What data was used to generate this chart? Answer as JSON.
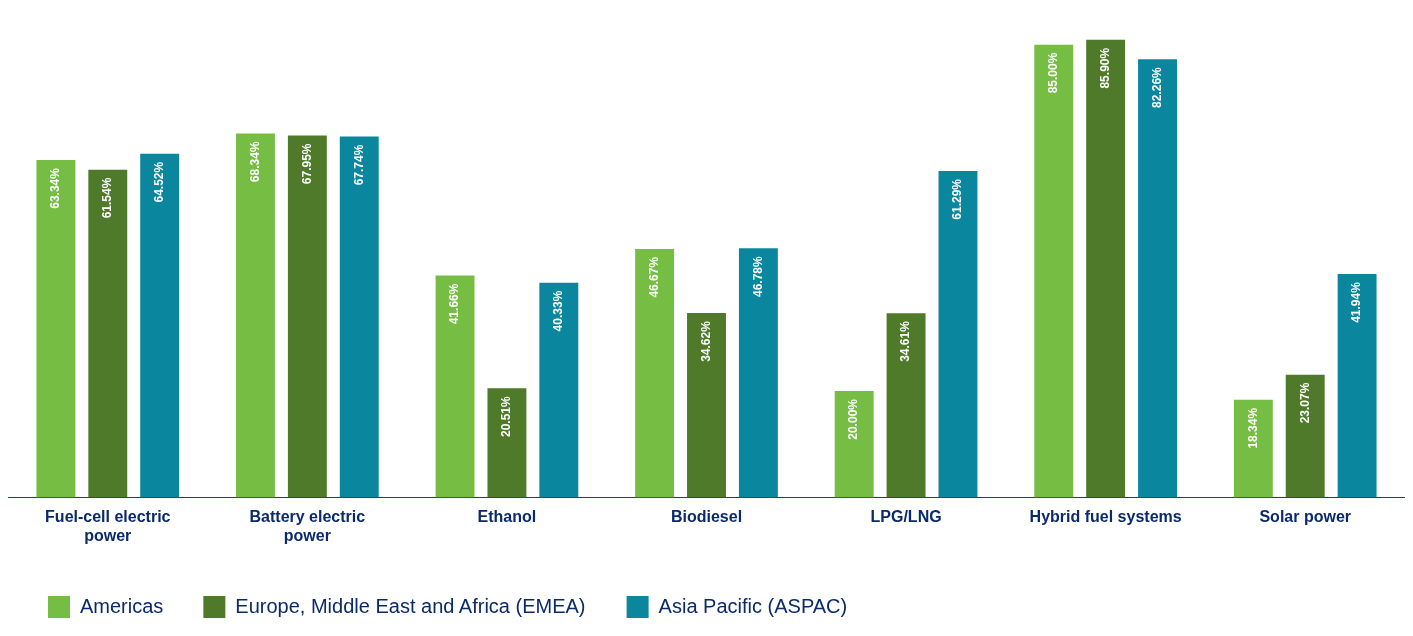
{
  "chart_data": {
    "type": "bar",
    "categories": [
      "Fuel-cell electric power",
      "Battery electric power",
      "Ethanol",
      "Biodiesel",
      "LPG/LNG",
      "Hybrid fuel systems",
      "Solar power"
    ],
    "series": [
      {
        "name": "Americas",
        "color": "#76bd43",
        "values": [
          63.34,
          68.34,
          41.66,
          46.67,
          20.0,
          85.0,
          18.34
        ],
        "value_labels": [
          "63.34%",
          "68.34%",
          "41.66%",
          "46.67%",
          "20.00%",
          "85.00%",
          "18.34%"
        ]
      },
      {
        "name": "Europe, Middle East and Africa (EMEA)",
        "color": "#4e7a2a",
        "values": [
          61.54,
          67.95,
          20.51,
          34.62,
          34.61,
          85.9,
          23.07
        ],
        "value_labels": [
          "61.54%",
          "67.95%",
          "20.51%",
          "34.62%",
          "34.61%",
          "85.90%",
          "23.07%"
        ]
      },
      {
        "name": "Asia Pacific (ASPAC)",
        "color": "#0a879e",
        "values": [
          64.52,
          67.74,
          40.33,
          46.78,
          61.29,
          82.26,
          41.94
        ],
        "value_labels": [
          "64.52%",
          "67.74%",
          "40.33%",
          "46.78%",
          "61.29%",
          "82.26%",
          "41.94%"
        ]
      }
    ],
    "grid": false,
    "legend": "bottom"
  }
}
